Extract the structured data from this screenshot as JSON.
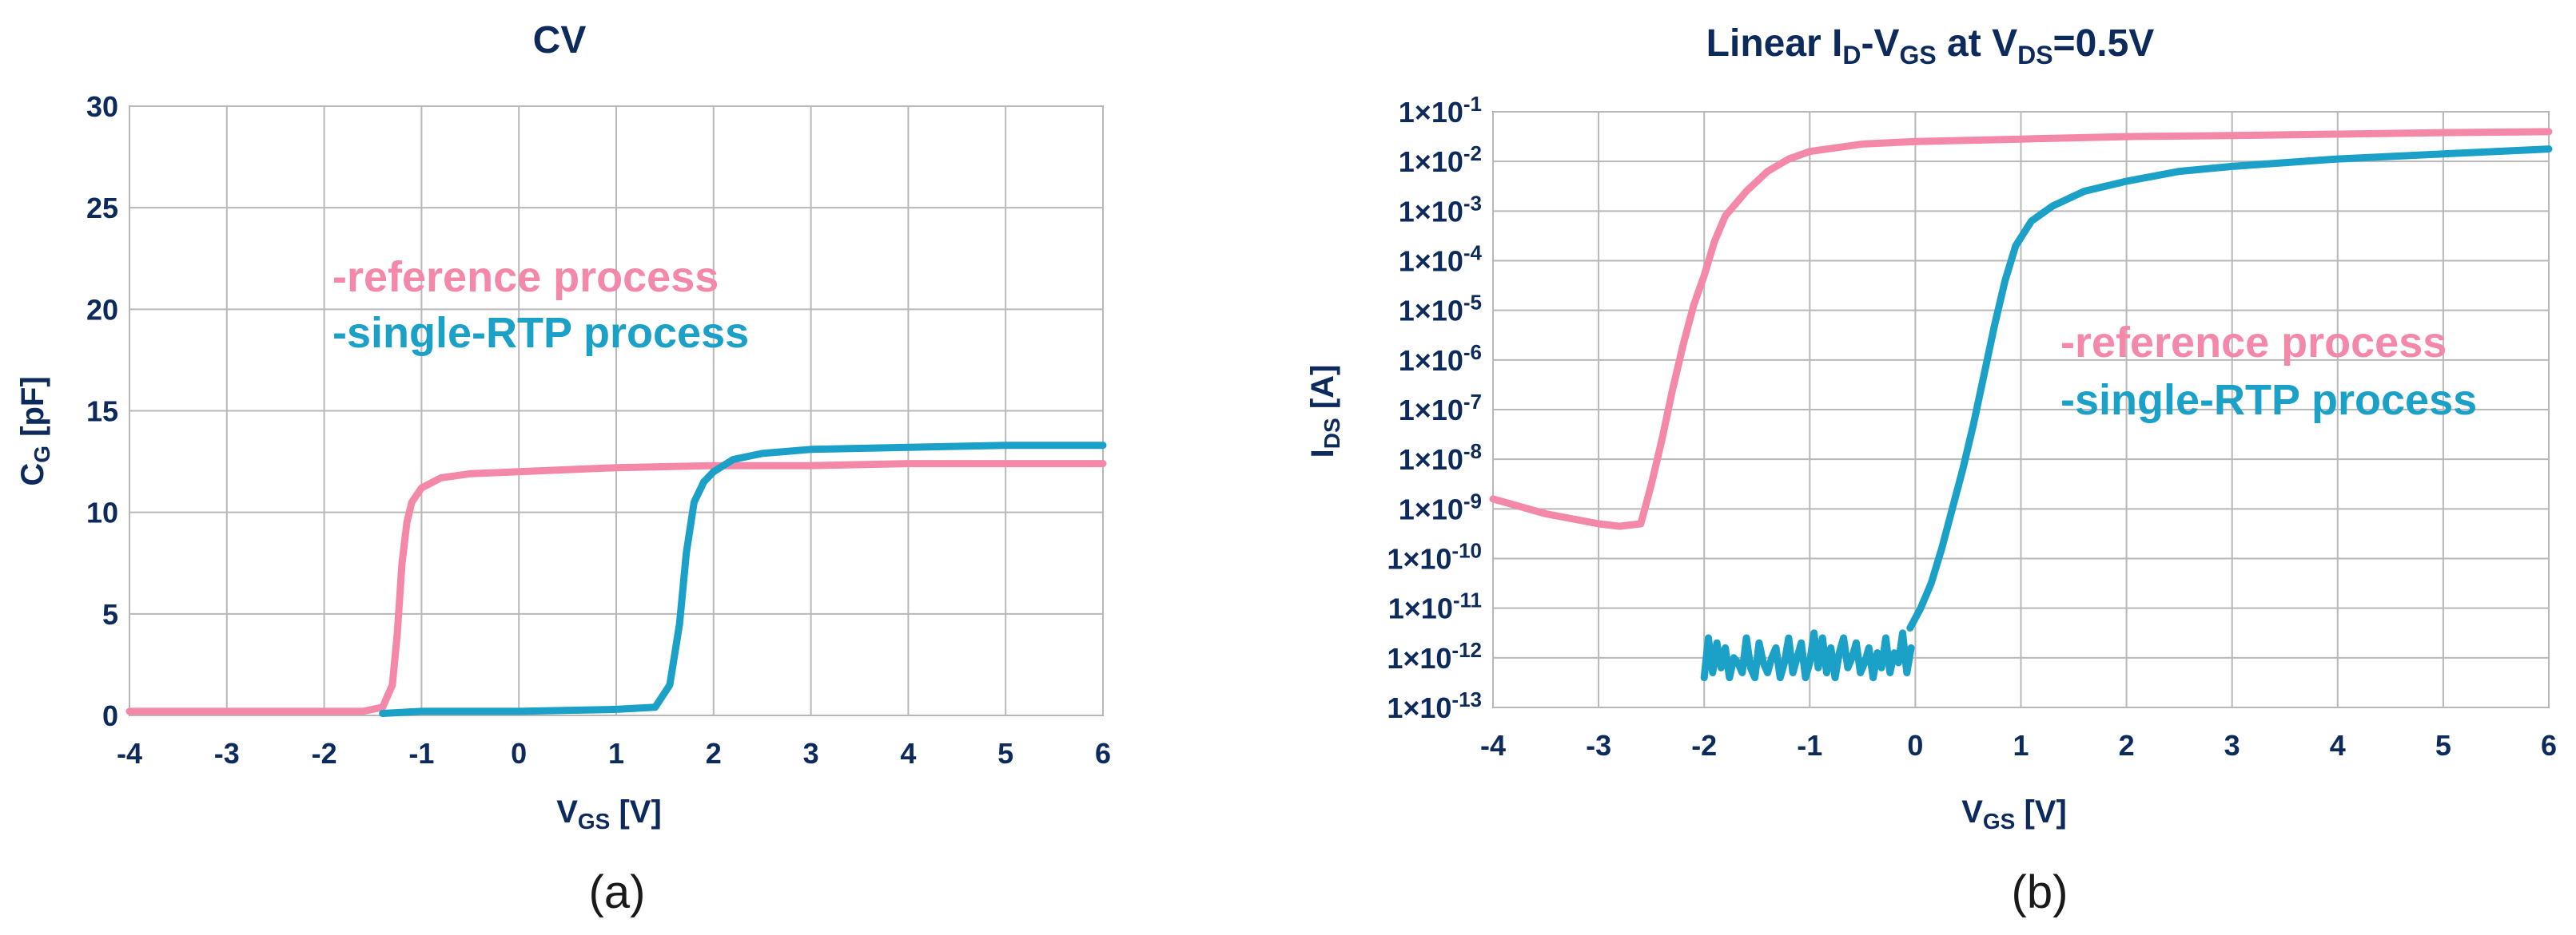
{
  "colors": {
    "reference": "#F488A8",
    "single_rtp": "#1BA0C8",
    "text": "#0d2a5c"
  },
  "chart_data": [
    {
      "type": "line",
      "caption": "(a)",
      "title": "CV",
      "xlabel": {
        "main": "V",
        "sub": "GS",
        "rest": " [V]"
      },
      "ylabel": {
        "main": "C",
        "sub": "G",
        "rest": " [pF]"
      },
      "xlim": [
        -4,
        6
      ],
      "ylim": [
        0,
        30
      ],
      "xticks": [
        -4,
        -3,
        -2,
        -1,
        0,
        1,
        2,
        3,
        4,
        5,
        6
      ],
      "xtick_labels": [
        "-4",
        "-3",
        "-2",
        "-1",
        "0",
        "1",
        "2",
        "3",
        "4",
        "5",
        "6"
      ],
      "yticks": [
        0,
        5,
        10,
        15,
        20,
        25,
        30
      ],
      "ytick_labels": [
        "0",
        "5",
        "10",
        "15",
        "20",
        "25",
        "30"
      ],
      "grid": true,
      "legend_position": "upper-middle",
      "series": [
        {
          "name": "-reference process",
          "color": "#F488A8",
          "x": [
            -4,
            -3,
            -2,
            -1.6,
            -1.4,
            -1.3,
            -1.25,
            -1.2,
            -1.15,
            -1.1,
            -1.0,
            -0.8,
            -0.5,
            0,
            1,
            2,
            3,
            4,
            5,
            6
          ],
          "y": [
            0.2,
            0.2,
            0.2,
            0.2,
            0.4,
            1.5,
            4,
            7.5,
            9.5,
            10.5,
            11.2,
            11.7,
            11.9,
            12.0,
            12.2,
            12.3,
            12.3,
            12.4,
            12.4,
            12.4
          ]
        },
        {
          "name": "-single-RTP process",
          "color": "#1BA0C8",
          "x": [
            -1.4,
            -1,
            0,
            1,
            1.4,
            1.55,
            1.65,
            1.72,
            1.8,
            1.9,
            2.0,
            2.2,
            2.5,
            3,
            4,
            5,
            6
          ],
          "y": [
            0.1,
            0.2,
            0.2,
            0.3,
            0.4,
            1.5,
            4.5,
            8,
            10.5,
            11.5,
            12.0,
            12.6,
            12.9,
            13.1,
            13.2,
            13.3,
            13.3
          ]
        }
      ]
    },
    {
      "type": "line",
      "caption": "(b)",
      "title": {
        "a": "Linear I",
        "a_sub": "D",
        "b": "-V",
        "b_sub": "GS",
        "c": " at V",
        "c_sub": "DS",
        "d": "=0.5V"
      },
      "xlabel": {
        "main": "V",
        "sub": "GS",
        "rest": " [V]"
      },
      "ylabel": {
        "main": "I",
        "sub": "DS",
        "rest": " [A]"
      },
      "xlim": [
        -4,
        6
      ],
      "ylim_log10": [
        -13,
        -1
      ],
      "y_scale": "log",
      "xticks": [
        -4,
        -3,
        -2,
        -1,
        0,
        1,
        2,
        3,
        4,
        5,
        6
      ],
      "xtick_labels": [
        "-4",
        "-3",
        "-2",
        "-1",
        "0",
        "1",
        "2",
        "3",
        "4",
        "5",
        "6"
      ],
      "yticks_log10": [
        -1,
        -2,
        -3,
        -4,
        -5,
        -6,
        -7,
        -8,
        -9,
        -10,
        -11,
        -12,
        -13
      ],
      "ytick_labels": [
        {
          "base": "1×10",
          "exp": "-1"
        },
        {
          "base": "1×10",
          "exp": "-2"
        },
        {
          "base": "1×10",
          "exp": "-3"
        },
        {
          "base": "1×10",
          "exp": "-4"
        },
        {
          "base": "1×10",
          "exp": "-5"
        },
        {
          "base": "1×10",
          "exp": "-6"
        },
        {
          "base": "1×10",
          "exp": "-7"
        },
        {
          "base": "1×10",
          "exp": "-8"
        },
        {
          "base": "1×10",
          "exp": "-9"
        },
        {
          "base": "1×10",
          "exp": "-10"
        },
        {
          "base": "1×10",
          "exp": "-11"
        },
        {
          "base": "1×10",
          "exp": "-12"
        },
        {
          "base": "1×10",
          "exp": "-13"
        }
      ],
      "grid": true,
      "legend_position": "right-middle",
      "series": [
        {
          "name": "-reference process",
          "color": "#F488A8",
          "x": [
            -4,
            -3.5,
            -3,
            -2.8,
            -2.6,
            -2.5,
            -2.4,
            -2.3,
            -2.2,
            -2.1,
            -2.0,
            -1.9,
            -1.8,
            -1.6,
            -1.4,
            -1.2,
            -1.0,
            -0.5,
            0,
            1,
            2,
            3,
            4,
            5,
            6
          ],
          "log10y": [
            -8.8,
            -9.1,
            -9.3,
            -9.35,
            -9.3,
            -8.5,
            -7.6,
            -6.6,
            -5.7,
            -4.9,
            -4.3,
            -3.6,
            -3.1,
            -2.6,
            -2.2,
            -1.95,
            -1.8,
            -1.65,
            -1.6,
            -1.55,
            -1.5,
            -1.48,
            -1.45,
            -1.42,
            -1.4
          ]
        },
        {
          "name": "-single-RTP process",
          "color": "#1BA0C8",
          "x": [
            -0.05,
            0.05,
            0.15,
            0.25,
            0.35,
            0.45,
            0.55,
            0.65,
            0.75,
            0.85,
            0.95,
            1.1,
            1.3,
            1.6,
            2.0,
            2.5,
            3,
            4,
            5,
            6
          ],
          "log10y": [
            -11.4,
            -11.0,
            -10.5,
            -9.8,
            -9.0,
            -8.2,
            -7.3,
            -6.3,
            -5.3,
            -4.4,
            -3.7,
            -3.2,
            -2.9,
            -2.6,
            -2.4,
            -2.2,
            -2.1,
            -1.95,
            -1.85,
            -1.75
          ]
        },
        {
          "name": "",
          "color": "#1BA0C8",
          "x": [
            -2.0,
            -1.96,
            -1.92,
            -1.88,
            -1.84,
            -1.8,
            -1.76,
            -1.72,
            -1.68,
            -1.64,
            -1.6,
            -1.56,
            -1.52,
            -1.48,
            -1.44,
            -1.4,
            -1.36,
            -1.32,
            -1.28,
            -1.24,
            -1.2,
            -1.16,
            -1.12,
            -1.08,
            -1.04,
            -1.0,
            -0.96,
            -0.92,
            -0.88,
            -0.84,
            -0.8,
            -0.76,
            -0.72,
            -0.68,
            -0.64,
            -0.6,
            -0.56,
            -0.52,
            -0.48,
            -0.44,
            -0.4,
            -0.36,
            -0.32,
            -0.28,
            -0.24,
            -0.2,
            -0.16,
            -0.12,
            -0.08,
            -0.04
          ],
          "log10y": [
            -12.4,
            -11.6,
            -12.3,
            -11.7,
            -12.2,
            -11.8,
            -12.4,
            -12.0,
            -12.1,
            -12.3,
            -11.6,
            -12.2,
            -12.4,
            -11.7,
            -12.1,
            -12.3,
            -12.0,
            -11.8,
            -12.4,
            -12.1,
            -11.6,
            -12.3,
            -12.0,
            -11.7,
            -12.4,
            -12.1,
            -11.5,
            -12.2,
            -11.6,
            -12.3,
            -11.8,
            -12.4,
            -11.9,
            -11.6,
            -12.2,
            -12.0,
            -11.7,
            -12.3,
            -12.1,
            -11.8,
            -12.4,
            -11.9,
            -12.2,
            -11.6,
            -12.3,
            -11.9,
            -12.1,
            -11.5,
            -12.3,
            -11.8
          ]
        }
      ]
    }
  ]
}
